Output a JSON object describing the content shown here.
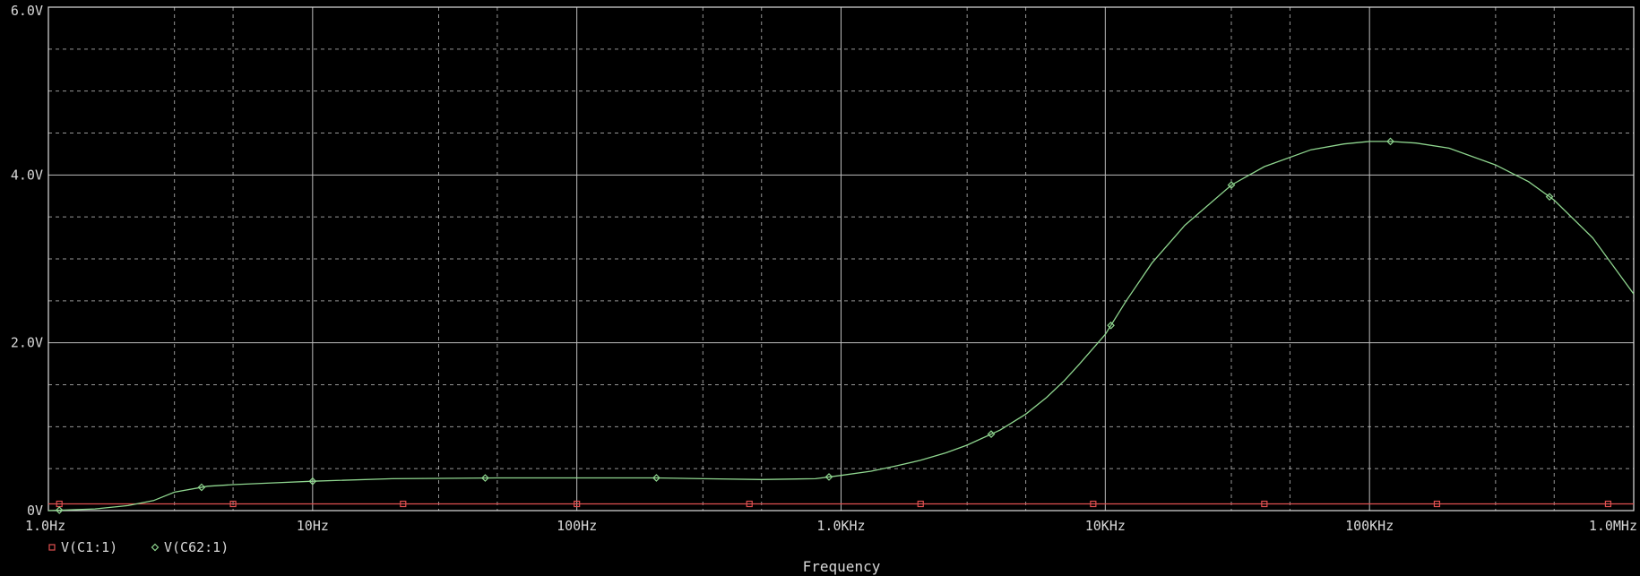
{
  "chart_data": {
    "type": "line",
    "title": "",
    "xlabel": "Frequency",
    "ylabel": "",
    "x_scale": "log",
    "xlim": [
      1,
      1000000
    ],
    "ylim": [
      0,
      6
    ],
    "grid": true,
    "legend_position": "bottom-left",
    "x_ticks": [
      {
        "value": 1,
        "label": "1.0Hz"
      },
      {
        "value": 10,
        "label": "10Hz"
      },
      {
        "value": 100,
        "label": "100Hz"
      },
      {
        "value": 1000,
        "label": "1.0KHz"
      },
      {
        "value": 10000,
        "label": "10KHz"
      },
      {
        "value": 100000,
        "label": "100KHz"
      },
      {
        "value": 1000000,
        "label": "1.0MHz"
      }
    ],
    "y_ticks": [
      {
        "value": 0,
        "label": "0V"
      },
      {
        "value": 2,
        "label": "2.0V"
      },
      {
        "value": 4,
        "label": "4.0V"
      },
      {
        "value": 6,
        "label": "6.0V"
      }
    ],
    "series": [
      {
        "name": "V(C1:1)",
        "color": "#e05050",
        "marker": "square",
        "x": [
          1,
          1000000
        ],
        "y": [
          0.08,
          0.08
        ],
        "marker_x": [
          1.1,
          5,
          22,
          100,
          450,
          2000,
          9000,
          40000,
          180000,
          800000
        ]
      },
      {
        "name": "V(C62:1)",
        "color": "#8fd68f",
        "marker": "diamond",
        "x": [
          1,
          1.5,
          2,
          2.5,
          3,
          4,
          5,
          7,
          10,
          20,
          50,
          100,
          200,
          300,
          500,
          800,
          1000,
          1300,
          1600,
          2000,
          2500,
          3000,
          4000,
          5000,
          6000,
          7000,
          8000,
          10000,
          12000,
          15000,
          20000,
          30000,
          40000,
          60000,
          80000,
          100000,
          120000,
          150000,
          200000,
          300000,
          400000,
          500000,
          700000,
          1000000
        ],
        "y": [
          0.0,
          0.02,
          0.06,
          0.12,
          0.22,
          0.29,
          0.31,
          0.33,
          0.35,
          0.38,
          0.39,
          0.39,
          0.39,
          0.38,
          0.37,
          0.38,
          0.42,
          0.47,
          0.53,
          0.6,
          0.69,
          0.78,
          0.96,
          1.15,
          1.35,
          1.55,
          1.75,
          2.1,
          2.5,
          2.95,
          3.4,
          3.88,
          4.1,
          4.3,
          4.37,
          4.4,
          4.4,
          4.38,
          4.32,
          4.12,
          3.92,
          3.7,
          3.25,
          2.58
        ],
        "marker_x": [
          1.1,
          3.8,
          10,
          45,
          200,
          900,
          3700,
          10500,
          30000,
          120000,
          480000
        ]
      }
    ]
  }
}
